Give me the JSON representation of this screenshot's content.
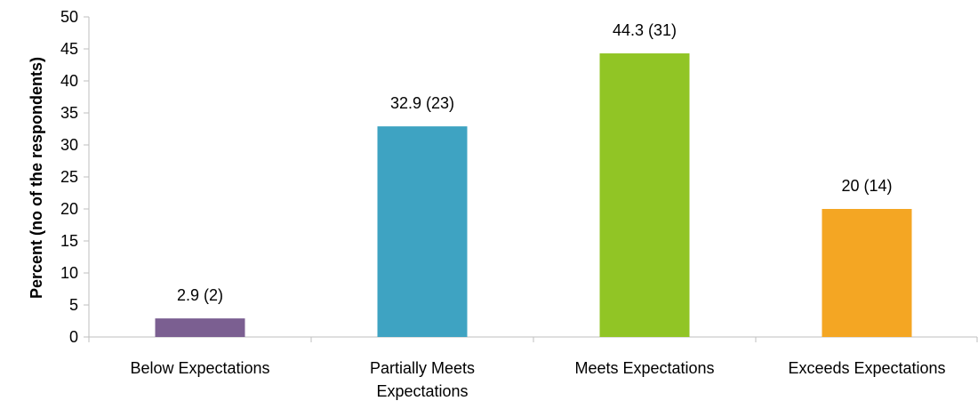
{
  "chart_data": {
    "type": "bar",
    "categories": [
      [
        "Below Expectations"
      ],
      [
        "Partially Meets",
        "Expectations"
      ],
      [
        "Meets Expectations"
      ],
      [
        "Exceeds Expectations"
      ]
    ],
    "values": [
      2.9,
      32.9,
      44.3,
      20
    ],
    "data_labels": [
      "2.9 (2)",
      "32.9 (23)",
      "44.3 (31)",
      "20 (14)"
    ],
    "colors": [
      "#7b5f91",
      "#3ea3c2",
      "#91c525",
      "#f4a623"
    ],
    "ylabel": "Percent (no of the respondents)",
    "xlabel": "",
    "title": "",
    "ylim": [
      0,
      50
    ],
    "ytick_step": 5,
    "grid": false,
    "legend": "none"
  }
}
